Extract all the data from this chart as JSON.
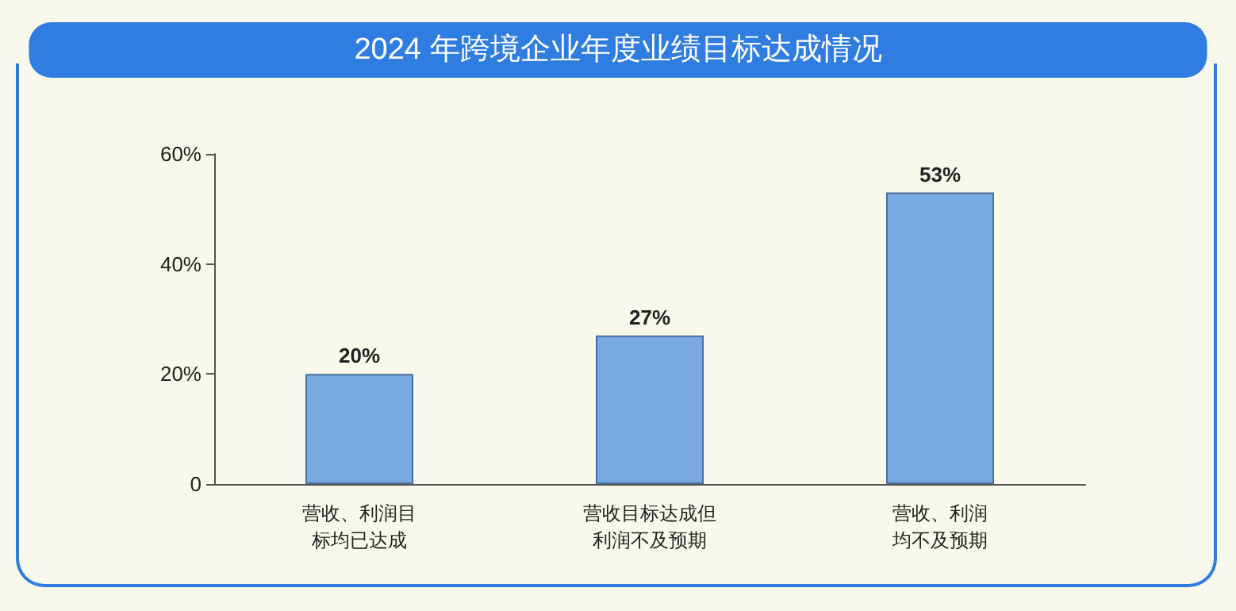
{
  "chart_data": {
    "type": "bar",
    "title": "2024 年跨境企业年度业绩目标达成情况",
    "categories": [
      "营收、利润目标均已达成",
      "营收目标达成但利润不及预期",
      "营收、利润均不及预期"
    ],
    "values": [
      20,
      27,
      53
    ],
    "color": "#7aaae2",
    "ylim": [
      0,
      60
    ],
    "yticks": [
      {
        "value": 0,
        "label": "0"
      },
      {
        "value": 20,
        "label": "20%"
      },
      {
        "value": 40,
        "label": "40%"
      },
      {
        "value": 60,
        "label": "60%"
      }
    ],
    "value_labels": [
      "20%",
      "27%",
      "53%"
    ],
    "grid": false
  }
}
